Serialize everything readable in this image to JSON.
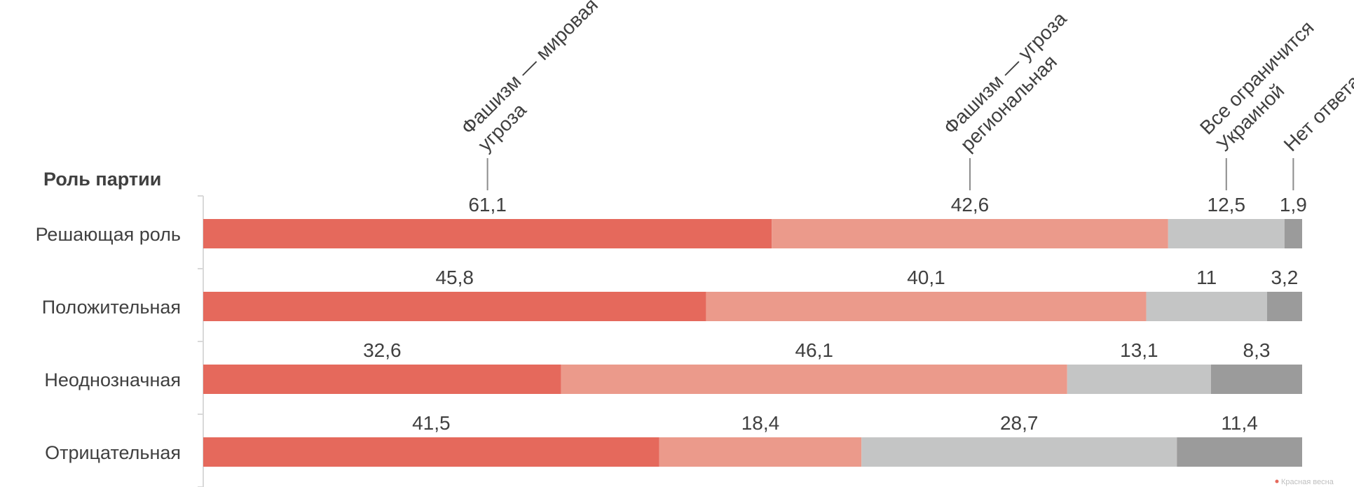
{
  "chart_data": {
    "type": "bar",
    "orientation": "horizontal",
    "stacked": "100%",
    "heading": "Роль партии",
    "categories": [
      "Решающая роль",
      "Положительная",
      "Неоднозначная",
      "Отрицательная"
    ],
    "series": [
      {
        "name": "Фашизм — мировая угроза",
        "name_lines": [
          "Фашизм — мировая",
          "угроза"
        ],
        "color": "#e5695c",
        "values": [
          61.1,
          45.8,
          32.6,
          41.5
        ],
        "labels": [
          "61,1",
          "45,8",
          "32,6",
          "41,5"
        ]
      },
      {
        "name": "Фашизм — угроза региональная",
        "name_lines": [
          "Фашизм — угроза",
          "региональная"
        ],
        "color": "#eb9a8b",
        "values": [
          42.6,
          40.1,
          46.1,
          18.4
        ],
        "labels": [
          "42,6",
          "40,1",
          "46,1",
          "18,4"
        ]
      },
      {
        "name": "Все ограничится Украиной",
        "name_lines": [
          "Все ограничится",
          "Украиной"
        ],
        "color": "#c4c5c5",
        "values": [
          12.5,
          11,
          13.1,
          28.7
        ],
        "labels": [
          "12,5",
          "11",
          "13,1",
          "28,7"
        ]
      },
      {
        "name": "Нет ответа",
        "name_lines": [
          "Нет ответа"
        ],
        "color": "#9b9b9b",
        "values": [
          1.9,
          3.2,
          8.3,
          11.4
        ],
        "labels": [
          "1,9",
          "3,2",
          "8,3",
          "11,4"
        ]
      }
    ],
    "legend": "top, rotated labels with leader lines",
    "grid": false
  },
  "watermark": "Красная весна"
}
